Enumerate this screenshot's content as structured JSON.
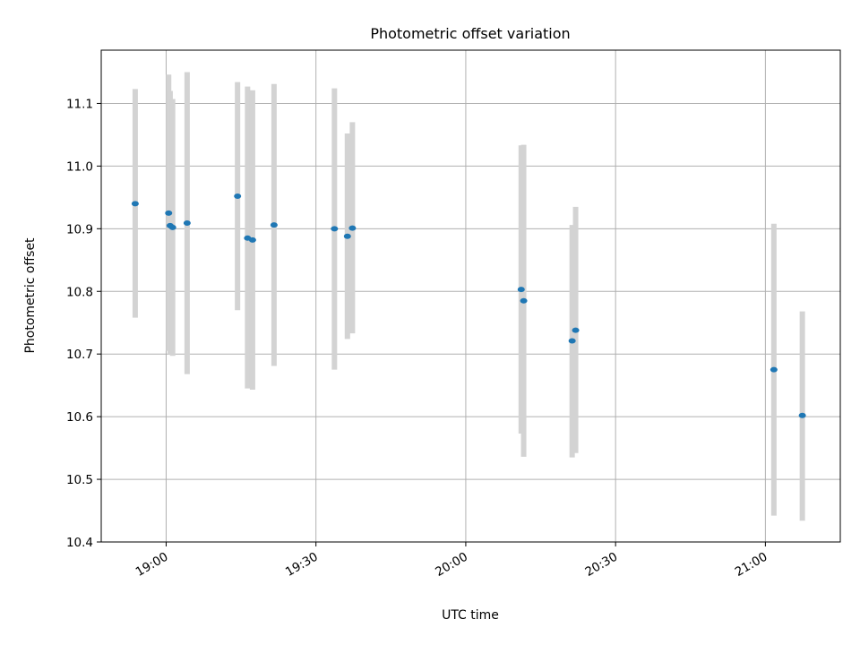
{
  "chart_data": {
    "type": "scatter",
    "title": "Photometric offset variation",
    "xlabel": "UTC time",
    "ylabel": "Photometric offset",
    "x_is_time": true,
    "xlim": [
      "18:47",
      "21:15"
    ],
    "ylim": [
      10.4,
      11.185
    ],
    "x_ticks": [
      "19:00",
      "19:30",
      "20:00",
      "20:30",
      "21:00"
    ],
    "y_ticks": [
      "10.4",
      "10.5",
      "10.6",
      "10.7",
      "10.8",
      "10.9",
      "11.0",
      "11.1"
    ],
    "grid": true,
    "colors": {
      "points": "#1f77b4",
      "errorbars": "#d3d3d3",
      "grid": "#b0b0b0"
    },
    "points": [
      {
        "x": "18:53.8",
        "y": 10.94,
        "yerr_low": 10.758,
        "yerr_high": 11.123
      },
      {
        "x": "19:00.5",
        "y": 10.925,
        "yerr_low": 10.705,
        "yerr_high": 11.146
      },
      {
        "x": "19:00.8",
        "y": 10.905,
        "yerr_low": 10.7,
        "yerr_high": 11.12
      },
      {
        "x": "19:01.3",
        "y": 10.902,
        "yerr_low": 10.697,
        "yerr_high": 11.107
      },
      {
        "x": "19:04.2",
        "y": 10.909,
        "yerr_low": 10.668,
        "yerr_high": 11.15
      },
      {
        "x": "19:14.3",
        "y": 10.952,
        "yerr_low": 10.77,
        "yerr_high": 11.134
      },
      {
        "x": "19:16.3",
        "y": 10.885,
        "yerr_low": 10.645,
        "yerr_high": 11.127
      },
      {
        "x": "19:17.3",
        "y": 10.882,
        "yerr_low": 10.643,
        "yerr_high": 11.121
      },
      {
        "x": "19:21.6",
        "y": 10.906,
        "yerr_low": 10.681,
        "yerr_high": 11.131
      },
      {
        "x": "19:33.7",
        "y": 10.9,
        "yerr_low": 10.675,
        "yerr_high": 11.124
      },
      {
        "x": "19:36.3",
        "y": 10.888,
        "yerr_low": 10.724,
        "yerr_high": 11.052
      },
      {
        "x": "19:37.3",
        "y": 10.901,
        "yerr_low": 10.733,
        "yerr_high": 11.07
      },
      {
        "x": "20:11.1",
        "y": 10.803,
        "yerr_low": 10.573,
        "yerr_high": 11.033
      },
      {
        "x": "20:11.6",
        "y": 10.785,
        "yerr_low": 10.536,
        "yerr_high": 11.034
      },
      {
        "x": "20:21.3",
        "y": 10.721,
        "yerr_low": 10.535,
        "yerr_high": 10.906
      },
      {
        "x": "20:22.0",
        "y": 10.738,
        "yerr_low": 10.542,
        "yerr_high": 10.935
      },
      {
        "x": "21:01.7",
        "y": 10.675,
        "yerr_low": 10.442,
        "yerr_high": 10.908
      },
      {
        "x": "21:07.4",
        "y": 10.602,
        "yerr_low": 10.434,
        "yerr_high": 10.768
      }
    ]
  }
}
